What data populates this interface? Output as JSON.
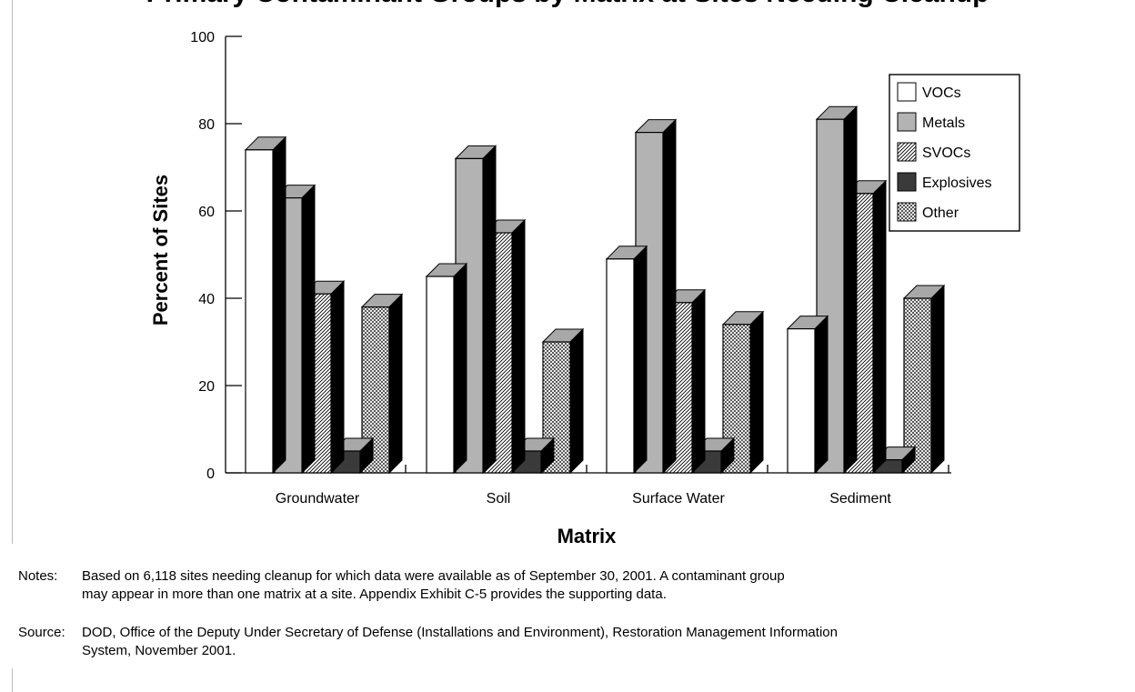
{
  "title": "Primary Contaminant Groups by Matrix at Sites Needing Cleanup",
  "chart_data": {
    "type": "bar",
    "title": "Primary Contaminant Groups by Matrix at Sites Needing Cleanup",
    "xlabel": "Matrix",
    "ylabel": "Percent of Sites",
    "ylim": [
      0,
      100
    ],
    "yticks": [
      "0",
      "20",
      "40",
      "60",
      "80",
      "100"
    ],
    "categories": [
      "Groundwater",
      "Soil",
      "Surface Water",
      "Sediment"
    ],
    "series": [
      {
        "name": "VOCs",
        "values": [
          74,
          45,
          49,
          33
        ],
        "fill": "#ffffff",
        "pattern": "none"
      },
      {
        "name": "Metals",
        "values": [
          63,
          72,
          78,
          81
        ],
        "fill": "#b3b3b3",
        "pattern": "none"
      },
      {
        "name": "SVOCs",
        "values": [
          41,
          55,
          39,
          64
        ],
        "fill": "#ffffff",
        "pattern": "diagonal-hatch"
      },
      {
        "name": "Explosives",
        "values": [
          5,
          5,
          5,
          3
        ],
        "fill": "#3a3a3a",
        "pattern": "none"
      },
      {
        "name": "Other",
        "values": [
          38,
          30,
          34,
          40
        ],
        "fill": "#ffffff",
        "pattern": "crosshatch"
      }
    ],
    "grid": false,
    "legend_position": "top-right",
    "style": "3d-bars",
    "colors": {
      "top_face": "#a8a8a8",
      "side_face": "#000000",
      "outline": "#000000"
    }
  },
  "notes": {
    "label": "Notes:",
    "text": "Based on 6,118 sites needing cleanup for which data were available as of September 30, 2001. A contaminant group\nmay appear in more than one matrix at a site. Appendix Exhibit C-5 provides the supporting data."
  },
  "source": {
    "label": "Source:",
    "text": "DOD, Office of the Deputy Under Secretary of Defense (Installations and Environment), Restoration Management Information\nSystem, November 2001."
  }
}
